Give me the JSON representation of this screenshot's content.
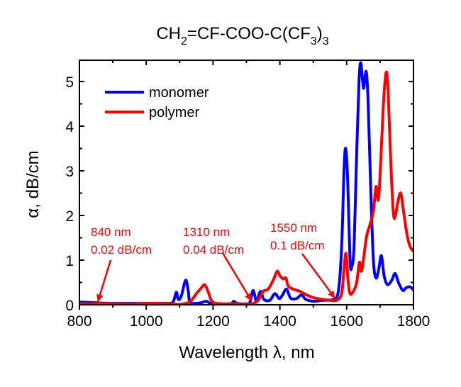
{
  "chart_data": {
    "type": "line",
    "title": "CH2=CF-COO-C(CF3)3",
    "title_parts": {
      "p1": "CH",
      "s1": "2",
      "p2": "=CF-COO-C(CF",
      "s2": "3",
      "p3": ")",
      "s3": "3"
    },
    "xlabel": "Wavelength λ, nm",
    "ylabel": "α, dB/cm",
    "xlim": [
      800,
      1800
    ],
    "ylim": [
      0,
      5.5
    ],
    "xticks": [
      800,
      1000,
      1200,
      1400,
      1600,
      1800
    ],
    "xticks_minor": [
      900,
      1100,
      1300,
      1500,
      1700
    ],
    "yticks": [
      0,
      1,
      2,
      3,
      4,
      5
    ],
    "yticks_minor": [
      0.5,
      1.5,
      2.5,
      3.5,
      4.5
    ],
    "grid": false,
    "legend_position": "top-left",
    "series": [
      {
        "name": "monomer",
        "color": "#0000ff",
        "points": [
          [
            800,
            0.06
          ],
          [
            840,
            0.05
          ],
          [
            860,
            0.04
          ],
          [
            900,
            0.03
          ],
          [
            1000,
            0.03
          ],
          [
            1060,
            0.03
          ],
          [
            1080,
            0.06
          ],
          [
            1090,
            0.28
          ],
          [
            1096,
            0.12
          ],
          [
            1105,
            0.2
          ],
          [
            1118,
            0.55
          ],
          [
            1126,
            0.3
          ],
          [
            1132,
            0.05
          ],
          [
            1160,
            0.04
          ],
          [
            1180,
            0.08
          ],
          [
            1195,
            0.03
          ],
          [
            1250,
            0.02
          ],
          [
            1262,
            0.08
          ],
          [
            1272,
            0.03
          ],
          [
            1300,
            0.02
          ],
          [
            1310,
            0.05
          ],
          [
            1320,
            0.32
          ],
          [
            1330,
            0.08
          ],
          [
            1342,
            0.3
          ],
          [
            1352,
            0.12
          ],
          [
            1370,
            0.1
          ],
          [
            1385,
            0.25
          ],
          [
            1398,
            0.14
          ],
          [
            1408,
            0.22
          ],
          [
            1420,
            0.35
          ],
          [
            1432,
            0.15
          ],
          [
            1450,
            0.14
          ],
          [
            1465,
            0.22
          ],
          [
            1478,
            0.12
          ],
          [
            1500,
            0.08
          ],
          [
            1530,
            0.1
          ],
          [
            1560,
            0.12
          ],
          [
            1575,
            0.3
          ],
          [
            1585,
            1.3
          ],
          [
            1592,
            3.0
          ],
          [
            1597,
            3.5
          ],
          [
            1603,
            2.8
          ],
          [
            1610,
            1.0
          ],
          [
            1615,
            0.85
          ],
          [
            1622,
            1.3
          ],
          [
            1630,
            3.4
          ],
          [
            1637,
            5.0
          ],
          [
            1642,
            5.42
          ],
          [
            1648,
            5.0
          ],
          [
            1651,
            4.85
          ],
          [
            1655,
            5.1
          ],
          [
            1659,
            5.2
          ],
          [
            1664,
            4.6
          ],
          [
            1672,
            2.6
          ],
          [
            1680,
            1.0
          ],
          [
            1688,
            0.6
          ],
          [
            1696,
            0.8
          ],
          [
            1704,
            1.1
          ],
          [
            1712,
            0.65
          ],
          [
            1722,
            0.45
          ],
          [
            1735,
            0.55
          ],
          [
            1745,
            0.7
          ],
          [
            1755,
            0.5
          ],
          [
            1768,
            0.32
          ],
          [
            1778,
            0.38
          ],
          [
            1790,
            0.4
          ],
          [
            1800,
            0.33
          ]
        ]
      },
      {
        "name": "polymer",
        "color": "#ff0000",
        "points": [
          [
            800,
            0.02
          ],
          [
            840,
            0.02
          ],
          [
            860,
            0.03
          ],
          [
            900,
            0.02
          ],
          [
            950,
            0.01
          ],
          [
            1000,
            0.03
          ],
          [
            1050,
            0.03
          ],
          [
            1080,
            0.02
          ],
          [
            1100,
            0.01
          ],
          [
            1130,
            0.06
          ],
          [
            1150,
            0.25
          ],
          [
            1165,
            0.38
          ],
          [
            1175,
            0.45
          ],
          [
            1185,
            0.3
          ],
          [
            1195,
            0.1
          ],
          [
            1210,
            0.03
          ],
          [
            1260,
            0.02
          ],
          [
            1300,
            0.01
          ],
          [
            1320,
            0.03
          ],
          [
            1335,
            0.1
          ],
          [
            1350,
            0.3
          ],
          [
            1365,
            0.35
          ],
          [
            1380,
            0.55
          ],
          [
            1392,
            0.75
          ],
          [
            1400,
            0.65
          ],
          [
            1410,
            0.58
          ],
          [
            1418,
            0.6
          ],
          [
            1425,
            0.42
          ],
          [
            1440,
            0.35
          ],
          [
            1460,
            0.3
          ],
          [
            1480,
            0.22
          ],
          [
            1500,
            0.16
          ],
          [
            1520,
            0.13
          ],
          [
            1550,
            0.1
          ],
          [
            1570,
            0.1
          ],
          [
            1585,
            0.25
          ],
          [
            1592,
            0.8
          ],
          [
            1598,
            1.15
          ],
          [
            1604,
            0.55
          ],
          [
            1610,
            0.25
          ],
          [
            1620,
            0.3
          ],
          [
            1630,
            0.5
          ],
          [
            1638,
            0.95
          ],
          [
            1644,
            0.75
          ],
          [
            1650,
            1.0
          ],
          [
            1660,
            1.55
          ],
          [
            1670,
            1.8
          ],
          [
            1680,
            2.1
          ],
          [
            1688,
            2.65
          ],
          [
            1695,
            2.35
          ],
          [
            1702,
            3.2
          ],
          [
            1710,
            4.5
          ],
          [
            1718,
            5.2
          ],
          [
            1724,
            4.8
          ],
          [
            1732,
            3.2
          ],
          [
            1740,
            2.05
          ],
          [
            1746,
            2.0
          ],
          [
            1753,
            2.3
          ],
          [
            1762,
            2.5
          ],
          [
            1770,
            2.1
          ],
          [
            1780,
            1.6
          ],
          [
            1790,
            1.3
          ],
          [
            1800,
            1.2
          ]
        ]
      }
    ],
    "annotations": [
      {
        "line1": "840 nm",
        "line2": "0.02 dB/cm",
        "target_x": 855,
        "target_y": 0.02
      },
      {
        "line1": "1310 nm",
        "line2": "0.04 dB/cm",
        "target_x": 1315,
        "target_y": 0.04
      },
      {
        "line1": "1550 nm",
        "line2": "0.1 dB/cm",
        "target_x": 1565,
        "target_y": 0.1
      }
    ]
  }
}
